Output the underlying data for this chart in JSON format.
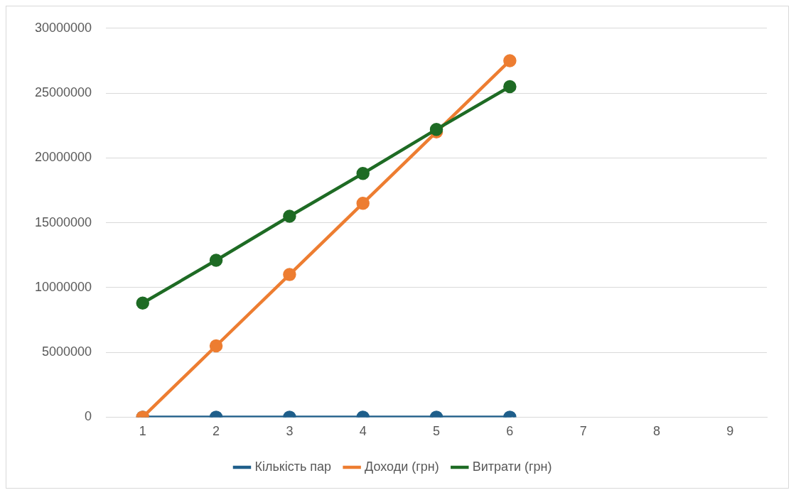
{
  "chart_data": {
    "type": "line",
    "categories": [
      "1",
      "2",
      "3",
      "4",
      "5",
      "6",
      "7",
      "8",
      "9"
    ],
    "series": [
      {
        "name": "Кількість пар",
        "color": "#1f5f8b",
        "values": [
          0,
          0,
          0,
          0,
          0,
          0,
          null,
          null,
          null
        ]
      },
      {
        "name": "Доходи (грн)",
        "color": "#ed7d31",
        "values": [
          0,
          5500000,
          11000000,
          16500000,
          22000000,
          27500000,
          null,
          null,
          null
        ]
      },
      {
        "name": "Витрати (грн)",
        "color": "#1e6b24",
        "values": [
          8800000,
          12100000,
          15500000,
          18800000,
          22200000,
          25500000,
          null,
          null,
          null
        ]
      }
    ],
    "ylim": [
      0,
      30000000
    ],
    "yticks": [
      0,
      5000000,
      10000000,
      15000000,
      20000000,
      25000000,
      30000000
    ],
    "grid": "y",
    "legend": "bottom",
    "marker": "circle",
    "line_style": "solid"
  }
}
